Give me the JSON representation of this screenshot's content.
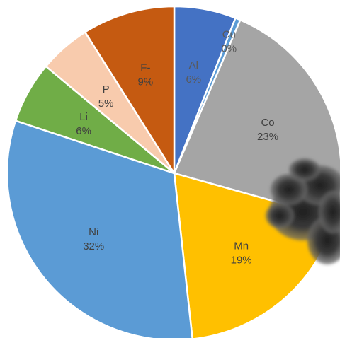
{
  "chart_data": {
    "type": "pie",
    "title": "",
    "slices": [
      {
        "name": "Al",
        "value": 6,
        "pct_label": "6%",
        "color": "#4472C4",
        "label_color": "#595959"
      },
      {
        "name": "Cu",
        "value": 0.5,
        "pct_label": "0%",
        "color": "#5B9BD5",
        "label_color": "#595959"
      },
      {
        "name": "Co",
        "value": 23,
        "pct_label": "23%",
        "color": "#A5A5A5",
        "label_color": "#404040"
      },
      {
        "name": "Mn",
        "value": 19,
        "pct_label": "19%",
        "color": "#FFC000",
        "label_color": "#404040"
      },
      {
        "name": "Ni",
        "value": 32,
        "pct_label": "32%",
        "color": "#5B9BD5",
        "label_color": "#404040"
      },
      {
        "name": "Li",
        "value": 6,
        "pct_label": "6%",
        "color": "#70AD47",
        "label_color": "#404040"
      },
      {
        "name": "P",
        "value": 5,
        "pct_label": "5%",
        "color": "#F8CBAD",
        "label_color": "#404040"
      },
      {
        "name": "F-",
        "value": 9,
        "pct_label": "9%",
        "color": "#C55A11",
        "label_color": "#404040"
      }
    ],
    "legend": "none",
    "start": "top",
    "direction": "clockwise"
  },
  "overlay": {
    "icon": "smoke-cloud-icon"
  }
}
